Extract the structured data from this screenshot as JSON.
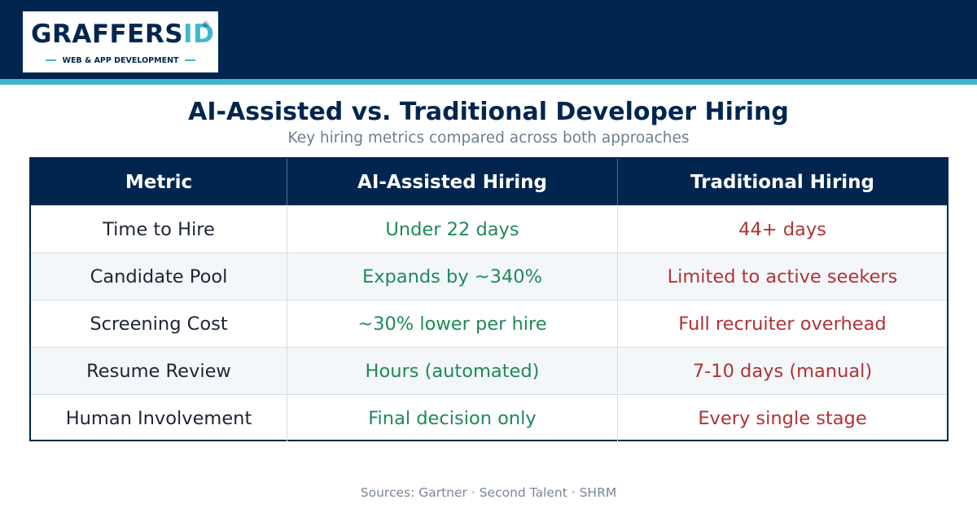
{
  "brand": {
    "logo_first": "G",
    "logo_mid": "RAFFERS",
    "logo_id": "ID",
    "logo_reg": "®",
    "tagline": "WEB & APP DEVELOPMENT"
  },
  "colors": {
    "navy": "#00264f",
    "accent": "#3fb8cf",
    "positive": "#1e8a57",
    "negative": "#b13236"
  },
  "title": "AI-Assisted vs. Traditional Developer Hiring",
  "subtitle": "Key hiring metrics compared across both approaches",
  "table": {
    "headers": [
      "Metric",
      "AI-Assisted Hiring",
      "Traditional Hiring"
    ],
    "rows": [
      [
        "Time to Hire",
        "Under 22 days",
        "44+ days"
      ],
      [
        "Candidate Pool",
        "Expands by ~340%",
        "Limited to active seekers"
      ],
      [
        "Screening Cost",
        "~30% lower per hire",
        "Full recruiter overhead"
      ],
      [
        "Resume Review",
        "Hours (automated)",
        "7-10 days (manual)"
      ],
      [
        "Human Involvement",
        "Final decision only",
        "Every single stage"
      ]
    ]
  },
  "sources": "Sources: Gartner · Second Talent · SHRM"
}
